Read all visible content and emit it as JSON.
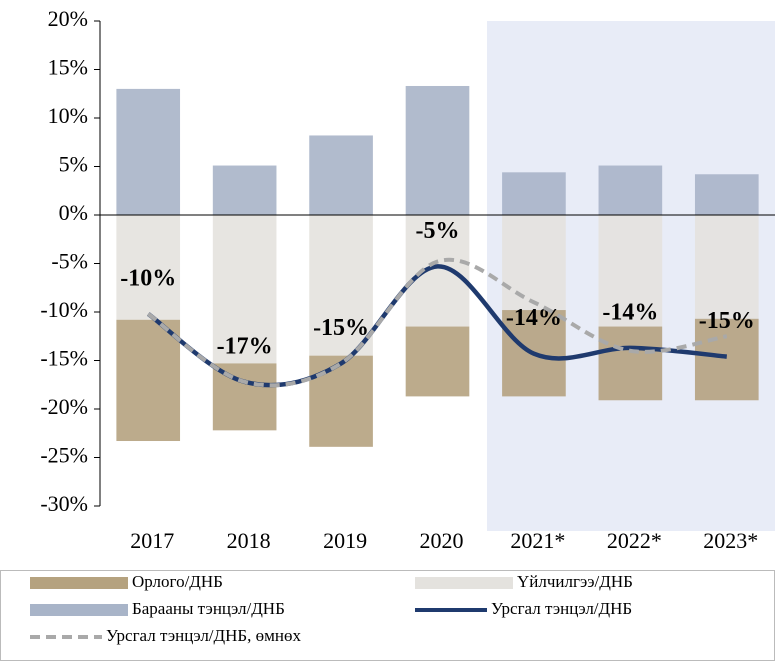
{
  "chart_data": {
    "type": "combo",
    "stacked": true,
    "categories": [
      "2017",
      "2018",
      "2019",
      "2020",
      "2021*",
      "2022*",
      "2023*"
    ],
    "ylim": [
      -30,
      20
    ],
    "yticks": [
      {
        "value": 20,
        "label": "20%"
      },
      {
        "value": 15,
        "label": "15%"
      },
      {
        "value": 10,
        "label": "10%"
      },
      {
        "value": 5,
        "label": "5%"
      },
      {
        "value": 0,
        "label": "0%"
      },
      {
        "value": -5,
        "label": "-5%"
      },
      {
        "value": -10,
        "label": "-10%"
      },
      {
        "value": -15,
        "label": "-15%"
      },
      {
        "value": -20,
        "label": "-20%"
      },
      {
        "value": -25,
        "label": "-25%"
      },
      {
        "value": -30,
        "label": "-30%"
      }
    ],
    "series": [
      {
        "name": "Орлого/ДНБ",
        "type": "bar",
        "color": "#b5a27f",
        "values": [
          -12.5,
          -6.9,
          -9.4,
          -7.2,
          -8.9,
          -7.6,
          -8.4
        ]
      },
      {
        "name": "Үйлчилгээ/ДНБ",
        "type": "bar",
        "color": "#e4e2de",
        "values": [
          -10.8,
          -15.3,
          -14.5,
          -11.5,
          -9.8,
          -11.5,
          -10.7
        ]
      },
      {
        "name": "Барааны тэнцэл/ДНБ",
        "type": "bar",
        "color": "#a8b4c8",
        "values": [
          13.0,
          5.1,
          8.2,
          13.3,
          4.4,
          5.1,
          4.2
        ]
      },
      {
        "name": "Урсгал тэнцэл/ДНБ",
        "type": "line",
        "color": "#1f3a6e",
        "values": [
          -10.2,
          -17.2,
          -15.3,
          -5.3,
          -14.3,
          -13.7,
          -14.6
        ],
        "value_labels": [
          "-10%",
          "-17%",
          "-15%",
          "-5%",
          "-14%",
          "-14%",
          "-15%"
        ]
      },
      {
        "name": "Урсгал тэнцэл/ДНБ, өмнөх",
        "type": "line",
        "dashed": true,
        "color": "#a9a9a9",
        "values": [
          -10.2,
          -17.2,
          -15.3,
          -4.8,
          -9.0,
          -14.0,
          -12.5
        ]
      }
    ]
  }
}
